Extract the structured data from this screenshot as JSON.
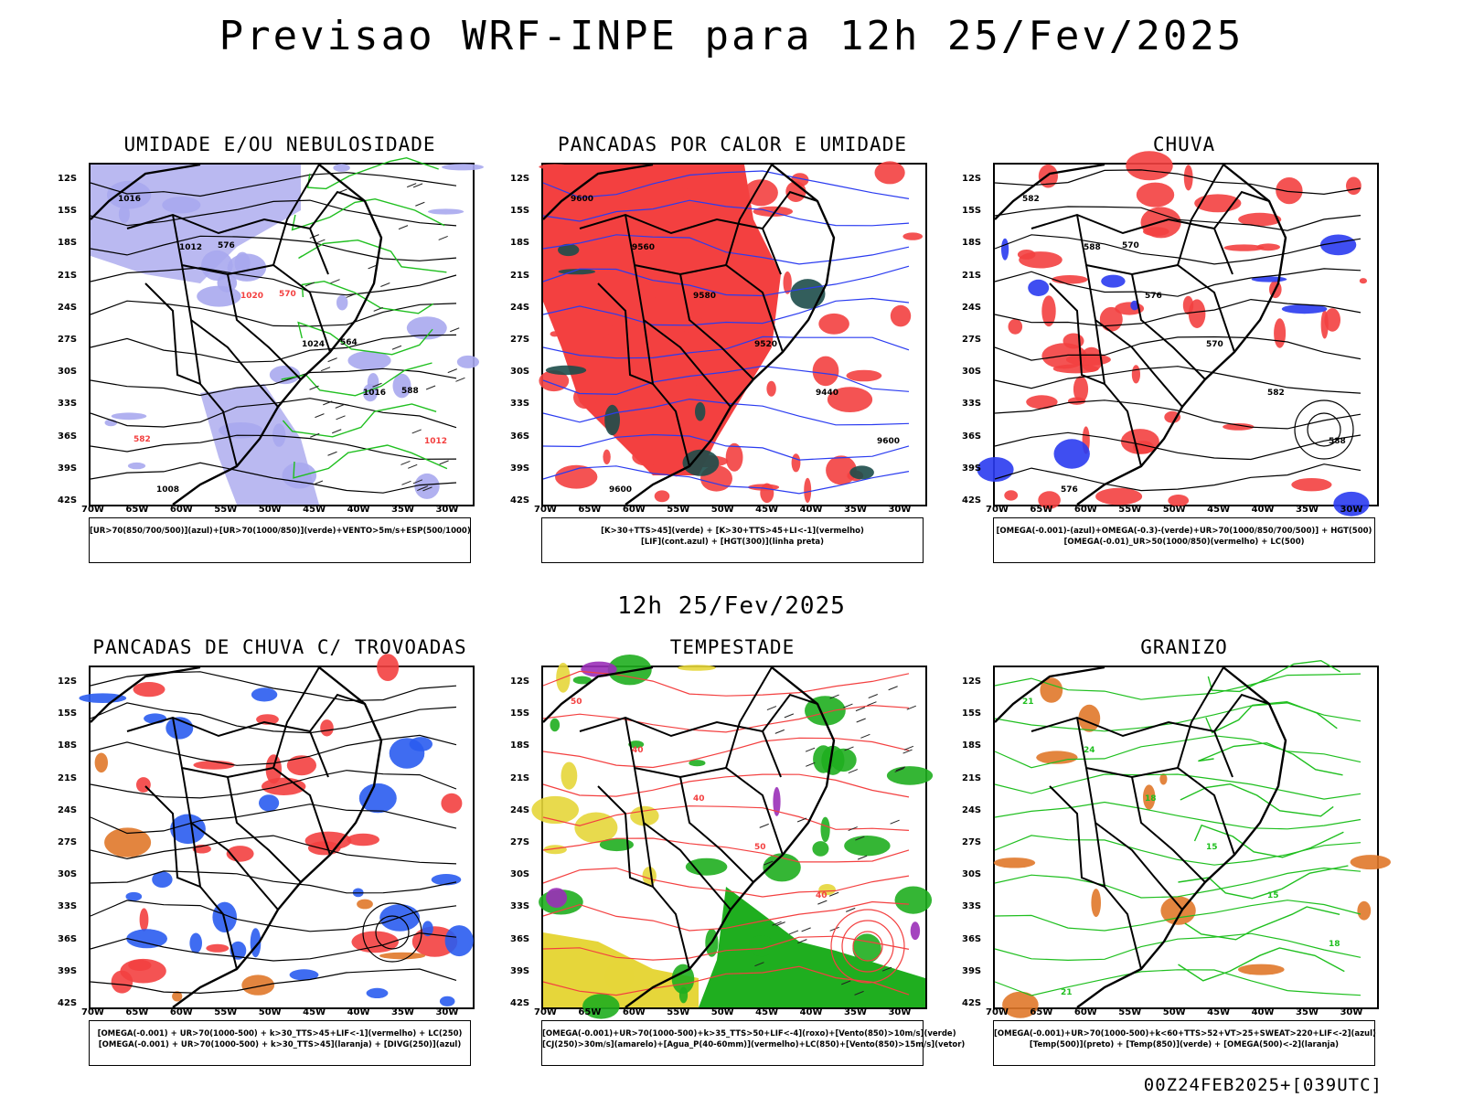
{
  "title": "Previsao WRF-INPE  para 12h 25/Fev/2025",
  "subtitle_time": "12h 25/Fev/2025",
  "footer": "00Z24FEB2025+[039UTC]",
  "axes": {
    "lat_labels": [
      "12S",
      "15S",
      "18S",
      "21S",
      "24S",
      "27S",
      "30S",
      "33S",
      "36S",
      "39S",
      "42S"
    ],
    "lon_labels": [
      "70W",
      "65W",
      "60W",
      "55W",
      "50W",
      "45W",
      "40W",
      "35W",
      "30W"
    ]
  },
  "panels": [
    {
      "title": "UMIDADE E/OU NEBULOSIDADE",
      "legend": [
        "[UR>70(850/700/500)](azul)+[UR>70(1000/850)](verde)+VENTO>5m/s+ESP(500/1000)"
      ],
      "contour_labels": [
        "1016",
        "1012",
        "1020",
        "1024",
        "1016",
        "1012",
        "1008",
        "576",
        "570",
        "564",
        "588",
        "582"
      ]
    },
    {
      "title": "PANCADAS POR CALOR E UMIDADE",
      "legend": [
        "[K>30+TTS>45](verde) + [K>30+TTS>45+LI<-1](vermelho)",
        "[LIF](cont.azul) + [HGT(300)](linha preta)"
      ],
      "contour_labels": [
        "9600",
        "9560",
        "9580",
        "9520",
        "9440",
        "9600",
        "9600"
      ]
    },
    {
      "title": "CHUVA",
      "legend": [
        "[OMEGA(-0.001)-(azul)+OMEGA(-0.3)-(verde)+UR>70(1000/850/700/500)] + HGT(500)",
        "[OMEGA(-0.01)_UR>50(1000/850)(vermelho) + LC(500)"
      ],
      "contour_labels": [
        "582",
        "588",
        "576",
        "570",
        "582",
        "588",
        "576",
        "570"
      ]
    },
    {
      "title": "PANCADAS DE CHUVA C/ TROVOADAS",
      "legend": [
        "[OMEGA(-0.001) + UR>70(1000-500) + k>30_TTS>45+LIF<-1](vermelho) + LC(250)",
        "[OMEGA(-0.001) + UR>70(1000-500) + k>30_TTS>45](laranja) + [DIVG(250)](azul)"
      ],
      "contour_labels": []
    },
    {
      "title": "TEMPESTADE",
      "legend": [
        "[OMEGA(-0.001)+UR>70(1000-500)+k>35_TTS>50+LIF<-4](roxo)+[Vento(850)>10m/s](verde)",
        "[CJ(250)>30m/s](amarelo)+[Agua_P(40-60mm)](vermelho)+LC(850)+[Vento(850)>15m/s](vetor)"
      ],
      "contour_labels": [
        "50",
        "40",
        "40",
        "50",
        "40"
      ]
    },
    {
      "title": "GRANIZO",
      "legend": [
        "[OMEGA(-0.001)+UR>70(1000-500)+k<60+TTS>52+VT>25+SWEAT>220+LIF<-2](azul)",
        "[Temp(500)](preto) + [Temp(850)](verde) + [OMEGA(500)<-2](laranja)"
      ],
      "contour_labels": [
        "21",
        "24",
        "18",
        "15",
        "15",
        "18",
        "21"
      ]
    }
  ]
}
